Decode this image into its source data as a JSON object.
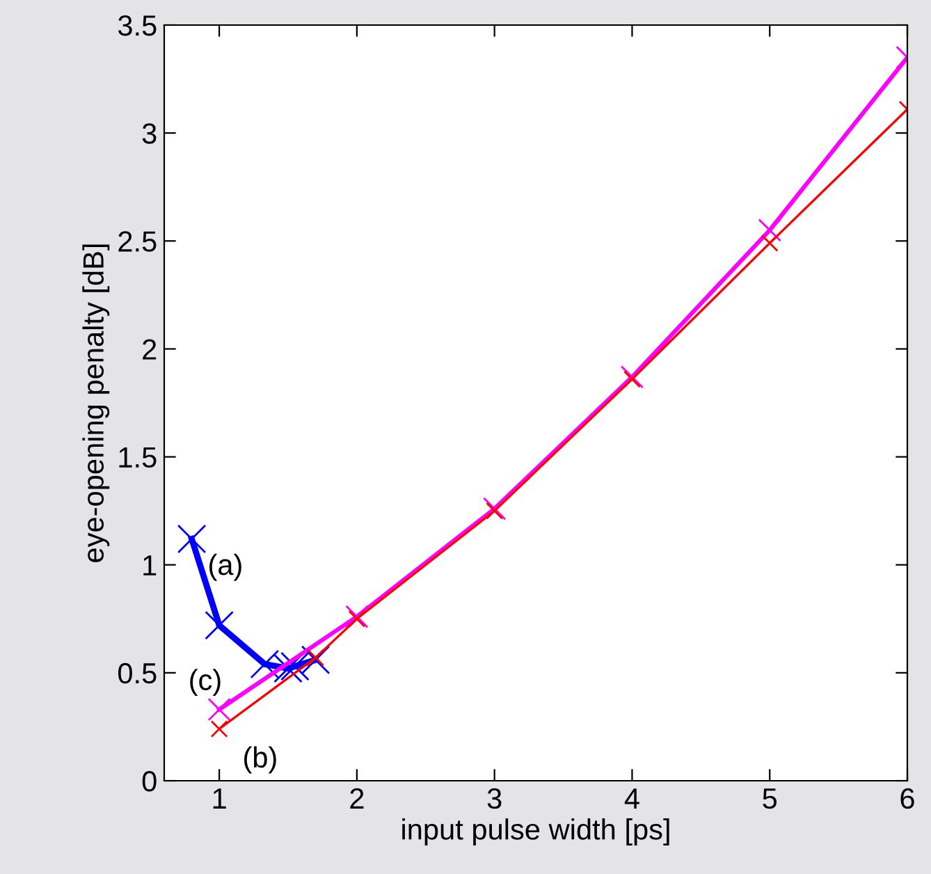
{
  "chart_data": {
    "type": "line",
    "xlabel": "input pulse width [ps]",
    "ylabel": "eye-opening penalty [dB]",
    "xlim": [
      0.6,
      6
    ],
    "xticks": [
      1,
      2,
      3,
      4,
      5,
      6
    ],
    "ylim": [
      0,
      3.5
    ],
    "yticks": [
      0,
      0.5,
      1,
      1.5,
      2,
      2.5,
      3,
      3.5
    ],
    "grid": false,
    "legend": false,
    "marker": "cross",
    "line_style": "solid",
    "series": [
      {
        "name": "(a)",
        "color": "#0000ff",
        "x": [
          0.8,
          1.0,
          1.33,
          1.5,
          1.55,
          1.7
        ],
        "values": [
          1.12,
          0.72,
          0.54,
          0.52,
          0.53,
          0.56
        ]
      },
      {
        "name": "(c)",
        "color": "#ff00ff",
        "x": [
          1,
          2,
          3,
          4,
          5,
          6
        ],
        "values": [
          0.33,
          0.76,
          1.26,
          1.87,
          2.55,
          3.35
        ]
      },
      {
        "name": "(b)",
        "color": "#ff0000",
        "x": [
          1,
          1.7,
          2,
          3,
          4,
          5,
          6
        ],
        "values": [
          0.24,
          0.57,
          0.75,
          1.25,
          1.86,
          2.49,
          3.11
        ]
      }
    ]
  }
}
